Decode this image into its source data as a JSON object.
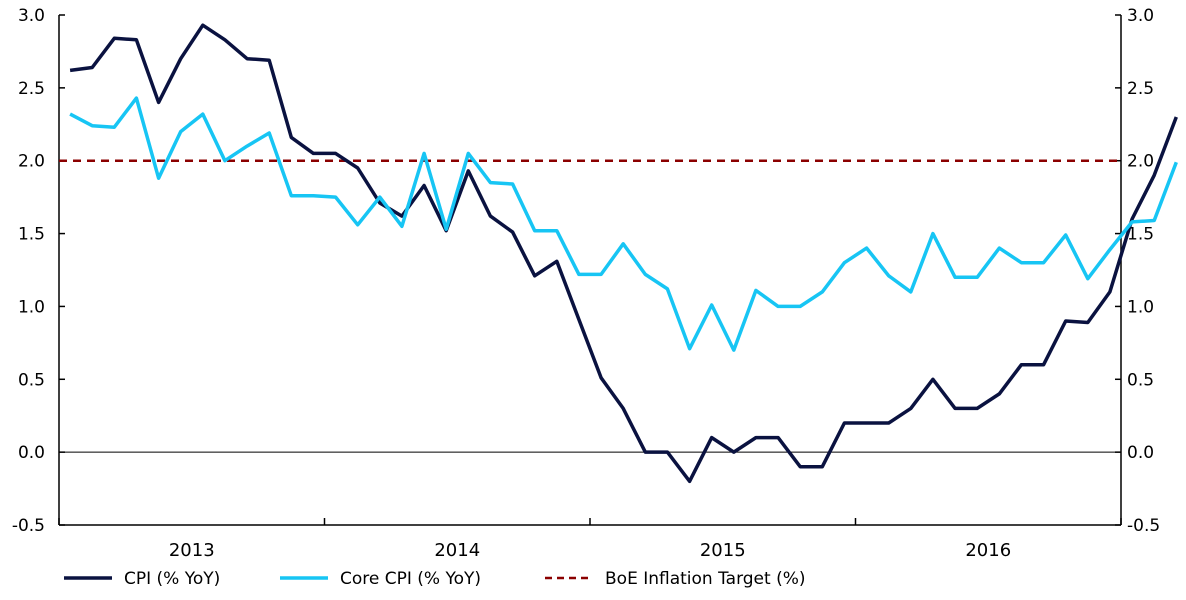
{
  "chart_data": {
    "type": "line",
    "title": "",
    "xlabel": "",
    "ylabel": "",
    "ylim": [
      -0.5,
      3.0
    ],
    "y_ticks": [
      "3.0",
      "2.5",
      "2.0",
      "1.5",
      "1.0",
      "0.5",
      "0.0",
      "-0.5"
    ],
    "year_labels": [
      "2013",
      "2014",
      "2015",
      "2016"
    ],
    "x_start": "2013-01",
    "grid": false,
    "legend_position": "bottom",
    "series": [
      {
        "name": "CPI (% YoY)",
        "color": "#0a1240",
        "values": [
          2.62,
          2.64,
          2.84,
          2.83,
          2.4,
          2.7,
          2.93,
          2.83,
          2.7,
          2.69,
          2.16,
          2.05,
          2.05,
          1.95,
          1.71,
          1.62,
          1.83,
          1.52,
          1.93,
          1.62,
          1.51,
          1.21,
          1.31,
          0.91,
          0.51,
          0.3,
          0.0,
          0.0,
          -0.2,
          0.1,
          0.0,
          0.1,
          0.1,
          -0.1,
          -0.1,
          0.2,
          0.2,
          0.2,
          0.3,
          0.5,
          0.3,
          0.3,
          0.4,
          0.6,
          0.6,
          0.9,
          0.89,
          1.1,
          1.6,
          1.9,
          2.3
        ]
      },
      {
        "name": "Core CPI (% YoY)",
        "color": "#17c5f4",
        "values": [
          2.32,
          2.24,
          2.23,
          2.43,
          1.88,
          2.2,
          2.32,
          2.0,
          2.1,
          2.19,
          1.76,
          1.76,
          1.75,
          1.56,
          1.75,
          1.55,
          2.05,
          1.53,
          2.05,
          1.85,
          1.84,
          1.52,
          1.52,
          1.22,
          1.22,
          1.43,
          1.22,
          1.12,
          0.71,
          1.01,
          0.7,
          1.11,
          1.0,
          1.0,
          1.1,
          1.3,
          1.4,
          1.21,
          1.1,
          1.5,
          1.2,
          1.2,
          1.4,
          1.3,
          1.3,
          1.49,
          1.19,
          1.39,
          1.58,
          1.59,
          1.99
        ]
      }
    ],
    "reference_lines": [
      {
        "name": "BoE Inflation Target (%)",
        "value": 2.0,
        "color": "#8b0000",
        "style": "dashed"
      }
    ],
    "zero_line": 0.0
  }
}
